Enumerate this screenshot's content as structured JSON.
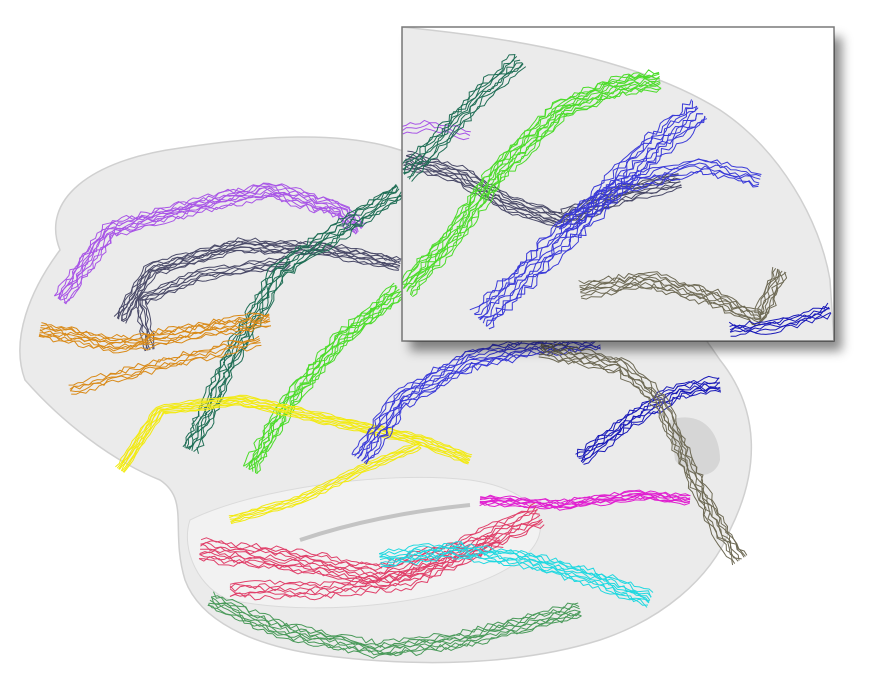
{
  "scene": {
    "background": "#ffffff",
    "brain_fill": "#ebebeb",
    "brain_edge": "#d0d0d0",
    "inset_border": "#7a7a7a"
  },
  "tracts": [
    {
      "name": "violet-tract",
      "color": "#a855e6"
    },
    {
      "name": "dark-slate-tract",
      "color": "#4a4a68"
    },
    {
      "name": "dark-teal-tract",
      "color": "#1f6e55"
    },
    {
      "name": "orange-tract",
      "color": "#d98a18"
    },
    {
      "name": "lime-green-tract",
      "color": "#4cdc2a"
    },
    {
      "name": "yellow-tract",
      "color": "#f2ea10"
    },
    {
      "name": "blue-tract",
      "color": "#3a3ad8"
    },
    {
      "name": "navy-tract",
      "color": "#1a1ab8"
    },
    {
      "name": "olive-gray-tract",
      "color": "#6e6a55"
    },
    {
      "name": "magenta-tract",
      "color": "#e020d0"
    },
    {
      "name": "crimson-tract",
      "color": "#e0406a"
    },
    {
      "name": "cyan-tract",
      "color": "#20d8e0"
    },
    {
      "name": "green-tract",
      "color": "#4a9a5a"
    }
  ]
}
